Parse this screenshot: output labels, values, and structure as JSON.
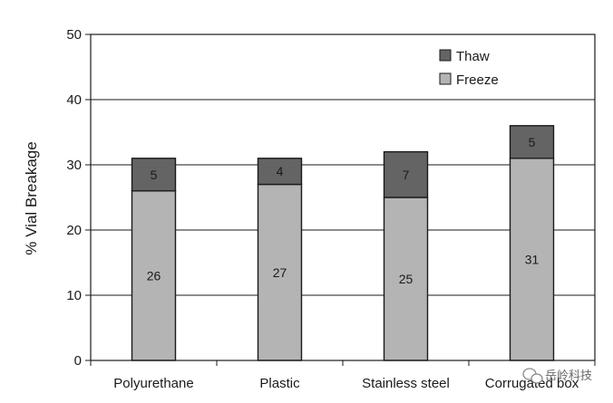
{
  "chart_data": {
    "type": "bar",
    "stacked": true,
    "categories": [
      "Polyurethane",
      "Plastic",
      "Stainless steel",
      "Corrugated box"
    ],
    "series": [
      {
        "name": "Freeze",
        "values": [
          26,
          27,
          25,
          31
        ],
        "color": "#b4b4b4"
      },
      {
        "name": "Thaw",
        "values": [
          5,
          4,
          7,
          5
        ],
        "color": "#646464"
      }
    ],
    "ylabel": "% Vial Breakage",
    "xlabel": "",
    "ylim": [
      0,
      50
    ],
    "yticks": [
      0,
      10,
      20,
      30,
      40,
      50
    ],
    "grid": true,
    "legend_position": "top-right",
    "legend_order": [
      "Thaw",
      "Freeze"
    ],
    "data_labels": true
  },
  "watermark": {
    "text": "岳岭科技",
    "icon": "chat-bubbles-icon"
  }
}
